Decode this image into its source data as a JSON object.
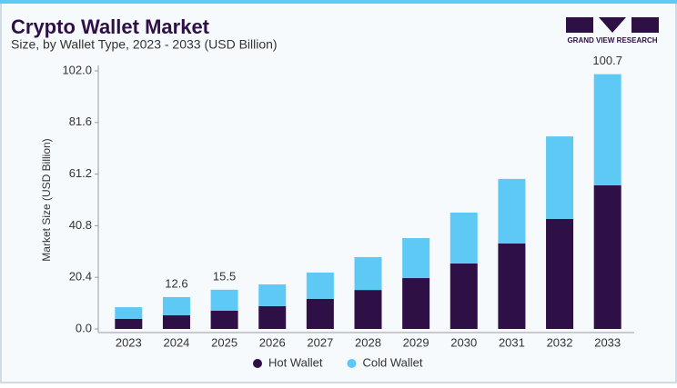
{
  "chart_data": {
    "type": "stacked_bar",
    "title": "Crypto Wallet Market",
    "subtitle": "Size, by Wallet Type, 2023 - 2033 (USD Billion)",
    "logo_text": "GRAND VIEW RESEARCH",
    "y_label": "Market Size (USD Billion)",
    "categories": [
      "2023",
      "2024",
      "2025",
      "2026",
      "2027",
      "2028",
      "2029",
      "2030",
      "2031",
      "2032",
      "2033"
    ],
    "series": [
      {
        "name": "Hot Wallet",
        "color": "#2e0f46",
        "values": [
          4.0,
          5.4,
          7.2,
          9.0,
          11.9,
          15.4,
          20.1,
          25.9,
          33.8,
          43.5,
          56.8
        ]
      },
      {
        "name": "Cold Wallet",
        "color": "#5ec9f5",
        "values": [
          4.6,
          7.2,
          8.3,
          8.6,
          10.4,
          13.0,
          15.8,
          20.1,
          25.5,
          32.6,
          43.9
        ]
      }
    ],
    "total_labels": [
      null,
      12.6,
      15.5,
      null,
      null,
      null,
      null,
      null,
      null,
      null,
      100.7
    ],
    "ylim": [
      0,
      102
    ],
    "yticks": [
      {
        "value": 0,
        "label": "0.0"
      },
      20.4,
      40.8,
      61.2,
      81.6,
      {
        "value": 102,
        "label": "102.0"
      }
    ]
  }
}
